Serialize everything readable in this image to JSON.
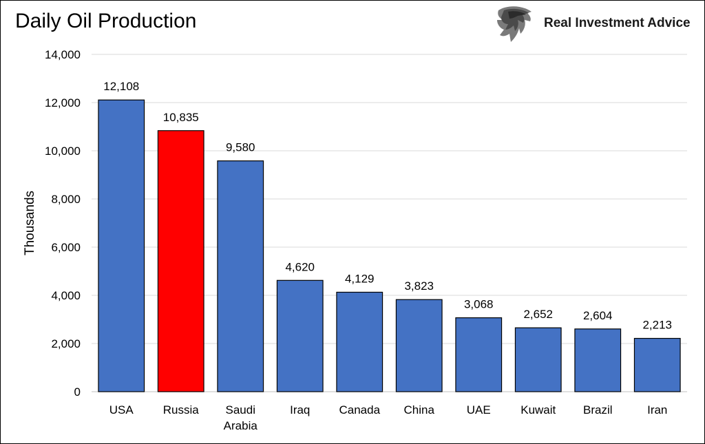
{
  "brand": {
    "name": "Real Investment Advice",
    "logo_icon": "eagle-head-icon"
  },
  "chart_data": {
    "type": "bar",
    "title": "Daily Oil Production",
    "ylabel": "Thousands",
    "xlabel": "",
    "ylim": [
      0,
      14000
    ],
    "yticks": [
      0,
      2000,
      4000,
      6000,
      8000,
      10000,
      12000,
      14000
    ],
    "ytick_labels": [
      "0",
      "2,000",
      "4,000",
      "6,000",
      "8,000",
      "10,000",
      "12,000",
      "14,000"
    ],
    "grid": true,
    "legend": "none",
    "categories": [
      "USA",
      "Russia",
      "Saudi\nArabia",
      "Iraq",
      "Canada",
      "China",
      "UAE",
      "Kuwait",
      "Brazil",
      "Iran"
    ],
    "values": [
      12108,
      10835,
      9580,
      4620,
      4129,
      3823,
      3068,
      2652,
      2604,
      2213
    ],
    "data_labels": [
      "12,108",
      "10,835",
      "9,580",
      "4,620",
      "4,129",
      "3,823",
      "3,068",
      "2,652",
      "2,604",
      "2,213"
    ],
    "colors": {
      "default_bar": "#4472C4",
      "highlight_bar": "#FF0000",
      "highlight_category": "Russia",
      "gridline": "#d9d9d9"
    }
  }
}
